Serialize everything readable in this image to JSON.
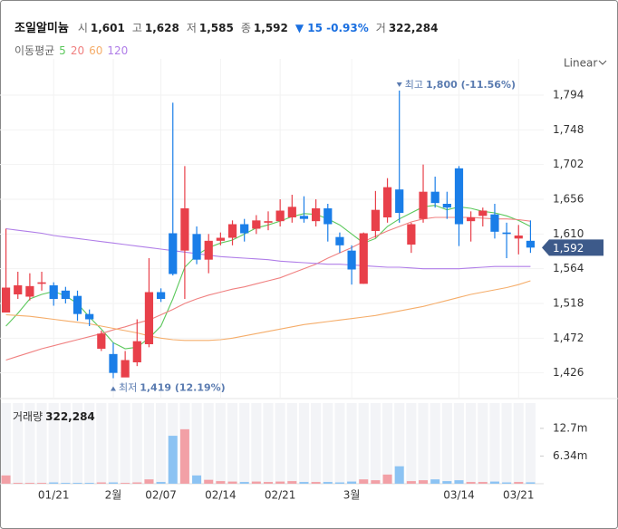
{
  "header": {
    "name": "조일알미늄",
    "items": [
      {
        "label": "시",
        "value": "1,601"
      },
      {
        "label": "고",
        "value": "1,628"
      },
      {
        "label": "저",
        "value": "1,585"
      },
      {
        "label": "종",
        "value": "1,592"
      }
    ],
    "change": "▼ 15 -0.93%",
    "change_color": "#1a6fe0",
    "volume_item": {
      "label": "거",
      "value": "322,284"
    }
  },
  "chart_data": {
    "type": "candlestick",
    "scale": "Linear",
    "legend_title": "이동평균",
    "categories": [
      null,
      null,
      null,
      null,
      "01/21",
      null,
      null,
      null,
      null,
      "2월",
      null,
      null,
      null,
      "02/07",
      null,
      null,
      null,
      null,
      "02/14",
      null,
      null,
      null,
      null,
      "02/21",
      null,
      null,
      null,
      null,
      null,
      "3월",
      null,
      null,
      null,
      null,
      null,
      null,
      null,
      null,
      "03/14",
      null,
      null,
      null,
      null,
      "03/21",
      null
    ],
    "open": [
      1506,
      1530,
      1527,
      1544,
      1542,
      1535,
      1528,
      1504,
      1458,
      1451,
      1420,
      1440,
      1464,
      1533,
      1611,
      1588,
      1610,
      1576,
      1601,
      1605,
      1623,
      1617,
      1625,
      1627,
      1632,
      1634,
      1627,
      1644,
      1606,
      1588,
      1544,
      1614,
      1632,
      1669,
      1596,
      1630,
      1666,
      1650,
      1697,
      1627,
      1634,
      1636,
      1612,
      1604,
      1601
    ],
    "high": [
      1617,
      1560,
      1558,
      1560,
      1546,
      1540,
      1535,
      1510,
      1482,
      1466,
      1455,
      1497,
      1578,
      1538,
      1784,
      1700,
      1620,
      1610,
      1612,
      1628,
      1630,
      1635,
      1640,
      1656,
      1662,
      1660,
      1656,
      1650,
      1612,
      1595,
      1612,
      1667,
      1684,
      1800,
      1625,
      1702,
      1686,
      1666,
      1700,
      1640,
      1645,
      1650,
      1625,
      1622,
      1628
    ],
    "low": [
      1506,
      1524,
      1522,
      1535,
      1515,
      1518,
      1495,
      1488,
      1455,
      1419,
      1422,
      1435,
      1460,
      1520,
      1555,
      1524,
      1570,
      1558,
      1595,
      1595,
      1600,
      1610,
      1615,
      1620,
      1625,
      1625,
      1620,
      1600,
      1585,
      1543,
      1544,
      1605,
      1625,
      1625,
      1585,
      1625,
      1645,
      1630,
      1594,
      1600,
      1620,
      1604,
      1578,
      1583,
      1585
    ],
    "close": [
      1539,
      1542,
      1541,
      1546,
      1524,
      1524,
      1504,
      1497,
      1478,
      1426,
      1443,
      1468,
      1533,
      1524,
      1557,
      1644,
      1576,
      1601,
      1605,
      1623,
      1611,
      1628,
      1627,
      1641,
      1646,
      1630,
      1644,
      1623,
      1595,
      1563,
      1611,
      1642,
      1672,
      1638,
      1623,
      1666,
      1651,
      1645,
      1623,
      1632,
      1641,
      1613,
      1610,
      1608,
      1592
    ],
    "up_color": "#e8404a",
    "down_color": "#1a7ee8",
    "ylim": [
      1392,
      1818
    ],
    "yticks": [
      {
        "value": 1426,
        "label": "1,426"
      },
      {
        "value": 1472,
        "label": "1,472"
      },
      {
        "value": 1518,
        "label": "1,518"
      },
      {
        "value": 1564,
        "label": "1,564"
      },
      {
        "value": 1610,
        "label": "1,610"
      },
      {
        "value": 1656,
        "label": "1,656"
      },
      {
        "value": 1702,
        "label": "1,702"
      },
      {
        "value": 1748,
        "label": "1,748"
      },
      {
        "value": 1794,
        "label": "1,794"
      }
    ],
    "last_label": "1,592",
    "series": [
      {
        "name": "5",
        "color": "#5cc85c",
        "values": [
          1488,
          1505,
          1524,
          1530,
          1534,
          1528,
          1518,
          1500,
          1484,
          1466,
          1458,
          1460,
          1472,
          1488,
          1524,
          1566,
          1582,
          1592,
          1598,
          1602,
          1610,
          1618,
          1622,
          1627,
          1633,
          1637,
          1636,
          1630,
          1622,
          1610,
          1598,
          1604,
          1620,
          1630,
          1638,
          1646,
          1648,
          1642,
          1646,
          1644,
          1640,
          1638,
          1634,
          1628,
          1620
        ]
      },
      {
        "name": "20",
        "color": "#f08080",
        "values": [
          1443,
          1448,
          1453,
          1458,
          1462,
          1466,
          1470,
          1474,
          1478,
          1483,
          1487,
          1492,
          1496,
          1503,
          1510,
          1518,
          1524,
          1529,
          1533,
          1537,
          1540,
          1544,
          1548,
          1552,
          1558,
          1564,
          1570,
          1578,
          1585,
          1592,
          1600,
          1607,
          1614,
          1620,
          1626,
          1630,
          1632,
          1632,
          1632,
          1632,
          1631,
          1630,
          1630,
          1629,
          1627
        ]
      },
      {
        "name": "60",
        "color": "#f5ad6a",
        "values": [
          1503,
          1502,
          1501,
          1499,
          1497,
          1495,
          1493,
          1491,
          1488,
          1485,
          1482,
          1479,
          1475,
          1472,
          1470,
          1469,
          1469,
          1469,
          1470,
          1472,
          1475,
          1478,
          1481,
          1484,
          1487,
          1490,
          1492,
          1494,
          1496,
          1498,
          1500,
          1502,
          1505,
          1508,
          1511,
          1514,
          1518,
          1522,
          1526,
          1530,
          1533,
          1536,
          1539,
          1543,
          1548
        ]
      },
      {
        "name": "120",
        "color": "#b07ee8",
        "values": [
          1617,
          1615,
          1613,
          1611,
          1608,
          1606,
          1604,
          1602,
          1600,
          1598,
          1596,
          1594,
          1592,
          1590,
          1588,
          1586,
          1584,
          1582,
          1580,
          1579,
          1578,
          1577,
          1576,
          1574,
          1573,
          1572,
          1571,
          1570,
          1570,
          1569,
          1568,
          1567,
          1566,
          1566,
          1565,
          1564,
          1564,
          1564,
          1564,
          1565,
          1566,
          1567,
          1567,
          1567,
          1567
        ]
      }
    ],
    "annotations": {
      "high": {
        "label": "최고",
        "value": "1,800 (-11.56%)"
      },
      "low": {
        "label": "최저",
        "value": "1,419 (12.19%)"
      }
    },
    "volume": {
      "label": "거래량",
      "value_label": "322,284",
      "up_color": "#f2a0a6",
      "down_color": "#8cc3f3",
      "ylim": [
        0,
        18.5
      ],
      "yticks": [
        {
          "value": 6.34,
          "label": "6.34m"
        },
        {
          "value": 12.7,
          "label": "12.7m"
        }
      ],
      "values": [
        1.9,
        0.2,
        0.2,
        0.2,
        0.3,
        0.2,
        0.2,
        0.2,
        0.3,
        0.3,
        0.2,
        0.3,
        1.0,
        0.4,
        11.0,
        12.5,
        1.9,
        0.9,
        0.6,
        0.5,
        0.4,
        0.5,
        0.4,
        0.5,
        0.6,
        0.4,
        0.4,
        0.4,
        0.3,
        0.5,
        1.0,
        0.8,
        2.1,
        4.0,
        0.6,
        0.8,
        1.0,
        0.6,
        0.8,
        0.4,
        0.4,
        0.5,
        0.3,
        0.4,
        0.322284
      ]
    }
  }
}
